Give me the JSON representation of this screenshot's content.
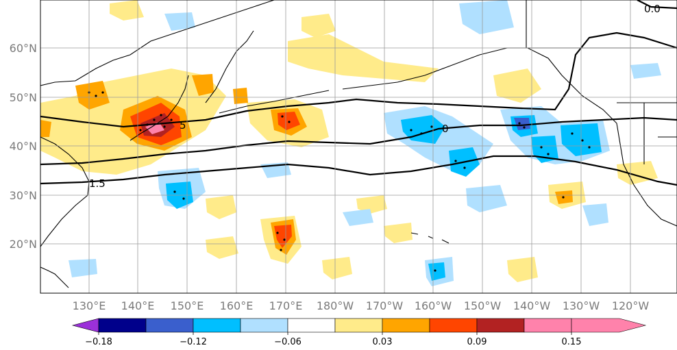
{
  "map": {
    "latitude_labels": [
      "20°N",
      "30°N",
      "40°N",
      "50°N",
      "60°N"
    ],
    "longitude_labels": [
      "130°E",
      "140°E",
      "150°E",
      "160°E",
      "170°E",
      "180°W",
      "170°W",
      "160°W",
      "150°W",
      "140°W",
      "130°W",
      "120°W"
    ],
    "contour_labels": [
      {
        "text": "0",
        "series": "line-40N"
      },
      {
        "text": "5",
        "series": "line-44N"
      },
      {
        "text": "1.5",
        "series": "line-35N"
      },
      {
        "text": "0.0",
        "series": "line-60N-corner"
      }
    ]
  },
  "colorbar": {
    "tick_labels": [
      "−0.18",
      "−0.12",
      "−0.06",
      "0.03",
      "0.09",
      "0.15"
    ],
    "colors": [
      "#9b30d9",
      "#00008b",
      "#3a5fcd",
      "#00bfff",
      "#b0e0ff",
      "#ffffff",
      "#ffeb8a",
      "#ffa500",
      "#ff4500",
      "#b22222",
      "#ff82ab"
    ]
  }
}
